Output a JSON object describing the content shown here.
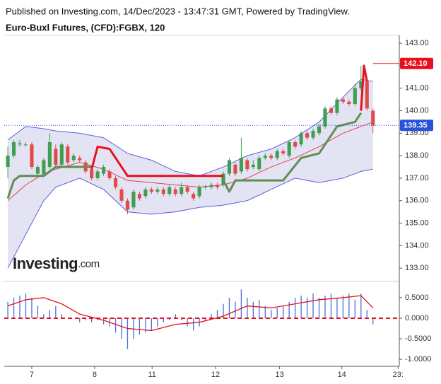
{
  "header": {
    "published": "Published on Investing.com, 14/Dec/2023 - 13:47:31 GMT, Powered by TradingView.",
    "symbol": "Euro-Buxl Futures, (CFD):FGBX, 120"
  },
  "logo": {
    "name": "Investing",
    "suffix": ".com"
  },
  "chart_data": [
    {
      "type": "candlestick",
      "up_color": "#3d9f4f",
      "down_color": "#e04a4b",
      "xlim": [
        -0.6,
        65.4
      ],
      "xticks": [
        {
          "value": 4.0,
          "label": "7"
        },
        {
          "value": 14.5,
          "label": "8"
        },
        {
          "value": 24.1,
          "label": "11"
        },
        {
          "value": 34.7,
          "label": "12"
        },
        {
          "value": 45.4,
          "label": "13"
        },
        {
          "value": 55.8,
          "label": "14"
        },
        {
          "value": 65.2,
          "label": "23:"
        }
      ],
      "ylim": [
        132.47,
        143.35
      ],
      "yticks": [
        {
          "value": 133,
          "label": "133.00"
        },
        {
          "value": 134,
          "label": "134.00"
        },
        {
          "value": 135,
          "label": "135.00"
        },
        {
          "value": 136,
          "label": "136.00"
        },
        {
          "value": 137,
          "label": "137.00"
        },
        {
          "value": 138,
          "label": "138.00"
        },
        {
          "value": 139,
          "label": "139.00"
        },
        {
          "value": 140,
          "label": "140.00"
        },
        {
          "value": 141,
          "label": "141.00"
        },
        {
          "value": 142,
          "label": "142.00"
        },
        {
          "value": 143,
          "label": "143.00"
        }
      ],
      "open": [
        137.5,
        138.0,
        138.5,
        138.5,
        138.5,
        137.2,
        137.2,
        137.5,
        138.3,
        137.6,
        138.4,
        137.8,
        137.9,
        137.7,
        137.4,
        137.0,
        137.2,
        137.3,
        137.0,
        136.5,
        136.0,
        135.7,
        136.3,
        136.2,
        136.5,
        136.4,
        136.5,
        136.3,
        136.5,
        136.3,
        136.6,
        136.3,
        136.2,
        136.6,
        136.6,
        136.7,
        136.7,
        137.2,
        137.6,
        137.3,
        137.8,
        137.5,
        137.4,
        137.9,
        138.0,
        137.9,
        138.2,
        138.0,
        138.6,
        138.5,
        139.0,
        138.8,
        139.0,
        139.3,
        140.1,
        139.9,
        140.5,
        140.4,
        140.3,
        141.0,
        141.3,
        140.0
      ],
      "high": [
        138.4,
        138.7,
        138.7,
        138.6,
        138.6,
        137.6,
        137.9,
        139.0,
        138.5,
        138.6,
        138.5,
        138.1,
        138.0,
        137.8,
        137.5,
        137.4,
        137.6,
        137.4,
        137.1,
        136.6,
        136.1,
        136.5,
        136.4,
        136.6,
        136.6,
        136.6,
        136.6,
        136.7,
        136.6,
        136.8,
        136.7,
        136.4,
        136.7,
        136.7,
        136.8,
        136.8,
        137.3,
        137.9,
        137.7,
        138.8,
        137.9,
        137.8,
        138.0,
        138.1,
        138.1,
        138.3,
        138.3,
        138.7,
        138.7,
        139.1,
        139.1,
        139.2,
        139.4,
        140.2,
        140.2,
        140.6,
        140.6,
        140.5,
        141.2,
        142.0,
        141.4,
        140.1
      ],
      "low": [
        137.0,
        137.9,
        138.4,
        138.4,
        137.4,
        137.1,
        137.1,
        137.4,
        137.5,
        137.5,
        137.6,
        137.7,
        137.7,
        137.2,
        136.9,
        136.9,
        137.1,
        136.9,
        136.5,
        135.9,
        135.4,
        135.6,
        136.0,
        136.1,
        136.3,
        136.3,
        136.2,
        136.2,
        136.2,
        136.2,
        136.3,
        136.0,
        136.1,
        136.5,
        136.5,
        136.5,
        136.6,
        137.1,
        137.1,
        137.2,
        137.3,
        137.4,
        137.3,
        137.8,
        137.8,
        137.8,
        138.0,
        137.9,
        138.3,
        138.4,
        138.7,
        138.7,
        138.9,
        139.2,
        139.8,
        139.8,
        140.3,
        140.2,
        140.2,
        140.9,
        140.0,
        139.0
      ],
      "close": [
        138.0,
        138.6,
        138.55,
        138.5,
        137.5,
        137.5,
        137.8,
        138.6,
        137.6,
        138.5,
        137.7,
        138.0,
        137.8,
        137.3,
        137.0,
        137.3,
        137.5,
        137.0,
        136.6,
        136.0,
        135.6,
        136.4,
        136.1,
        136.5,
        136.4,
        136.5,
        136.3,
        136.6,
        136.3,
        136.6,
        136.4,
        136.1,
        136.6,
        136.65,
        136.7,
        136.6,
        137.2,
        137.8,
        137.2,
        137.9,
        137.4,
        137.6,
        137.9,
        138.0,
        137.9,
        138.2,
        138.1,
        138.6,
        138.4,
        139.0,
        138.8,
        139.1,
        139.3,
        140.1,
        139.9,
        140.5,
        140.4,
        140.3,
        141.0,
        141.3,
        140.1,
        139.35
      ],
      "bands": {
        "fill": "#e3e3f3",
        "upper_color": "#5a5fdc",
        "lower_color": "#5a5fdc",
        "middle_color": "#e8404a",
        "x": [
          0,
          3,
          6,
          8,
          12,
          16,
          20,
          24,
          28,
          32,
          36,
          40,
          44,
          48,
          52,
          56,
          59,
          61
        ],
        "upper": [
          138.7,
          139.3,
          139.2,
          139.1,
          139.0,
          138.8,
          138.1,
          137.8,
          137.3,
          137.1,
          137.5,
          138.0,
          138.3,
          138.8,
          139.5,
          140.6,
          141.4,
          141.3
        ],
        "lower": [
          133.0,
          134.5,
          136.0,
          136.6,
          137.0,
          136.5,
          135.5,
          135.4,
          135.5,
          135.7,
          135.8,
          136.0,
          136.5,
          137.0,
          136.8,
          137.0,
          137.3,
          137.4
        ],
        "middle": [
          136.0,
          136.7,
          137.2,
          137.4,
          137.7,
          137.4,
          136.9,
          136.8,
          136.7,
          136.6,
          136.7,
          137.0,
          137.5,
          137.9,
          138.4,
          139.0,
          139.3,
          139.5
        ]
      },
      "trend": [
        {
          "color": "#5e8e52",
          "x": [
            0,
            1,
            2,
            6,
            8,
            14
          ],
          "values": [
            136.1,
            136.9,
            137.1,
            137.1,
            137.5,
            137.5
          ]
        },
        {
          "color": "#e8101c",
          "x": [
            14,
            15,
            17,
            19,
            20,
            36
          ],
          "values": [
            137.4,
            138.4,
            138.3,
            137.5,
            137.1,
            137.1
          ]
        },
        {
          "color": "#5e8e52",
          "x": [
            36,
            37,
            38,
            44,
            46,
            49,
            52,
            55,
            58,
            59
          ],
          "values": [
            136.9,
            136.4,
            136.9,
            136.9,
            136.9,
            137.9,
            138.1,
            139.3,
            139.5,
            139.9
          ]
        },
        {
          "color": "#e8101c",
          "x": [
            59,
            59.5,
            60
          ],
          "values": [
            140.0,
            142.0,
            141.3
          ]
        }
      ],
      "price_labels": [
        {
          "value": 142.1,
          "label": "142.10",
          "color": "#e8101c",
          "from_x": 61
        },
        {
          "value": 139.35,
          "label": "139.35",
          "color": "#2a52d6",
          "dotted": true
        }
      ]
    },
    {
      "type": "histogram-line",
      "xlim": [
        -0.6,
        65.4
      ],
      "ylim": [
        -1.17,
        0.86
      ],
      "yticks": [
        {
          "value": 0.5,
          "label": "0.5000"
        },
        {
          "value": 0,
          "label": "0.0000"
        },
        {
          "value": -0.5,
          "label": "-0.5000"
        },
        {
          "value": -1,
          "label": "-1.0000"
        }
      ],
      "bar_color": "#4a6fd6",
      "zero_color": "#e8101c",
      "values": [
        0.4,
        0.5,
        0.55,
        0.6,
        0.5,
        0.3,
        0.1,
        0.2,
        0.3,
        0.1,
        0.0,
        0.0,
        -0.1,
        -0.05,
        -0.1,
        -0.05,
        -0.15,
        -0.2,
        -0.35,
        -0.5,
        -0.75,
        -0.5,
        -0.4,
        -0.35,
        -0.3,
        -0.2,
        -0.1,
        -0.05,
        0.1,
        -0.05,
        -0.2,
        -0.3,
        -0.2,
        -0.05,
        0.1,
        0.2,
        0.35,
        0.5,
        0.4,
        0.7,
        0.5,
        0.4,
        0.45,
        0.3,
        0.2,
        0.25,
        0.3,
        0.4,
        0.5,
        0.55,
        0.5,
        0.6,
        0.5,
        0.55,
        0.6,
        0.5,
        0.55,
        0.6,
        0.45,
        0.6,
        0.2,
        -0.15
      ],
      "signal": {
        "color": "#e8101c",
        "x": [
          0,
          3,
          6,
          9,
          12,
          16,
          20,
          24,
          28,
          32,
          36,
          40,
          44,
          48,
          52,
          56,
          59,
          61
        ],
        "values": [
          0.3,
          0.45,
          0.5,
          0.35,
          0.1,
          -0.05,
          -0.25,
          -0.3,
          -0.15,
          -0.1,
          0.05,
          0.3,
          0.25,
          0.35,
          0.45,
          0.5,
          0.55,
          0.25
        ]
      }
    }
  ]
}
